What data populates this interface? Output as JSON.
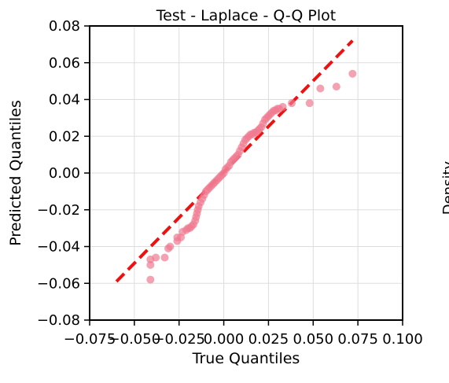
{
  "chart_data": {
    "type": "scatter",
    "title": "Test - Laplace - Q-Q Plot",
    "xlabel": "True Quantiles",
    "ylabel": "Predicted Quantiles",
    "xlim": [
      -0.075,
      0.1
    ],
    "ylim": [
      -0.08,
      0.08
    ],
    "grid": true,
    "x_ticks": [
      -0.075,
      -0.05,
      -0.025,
      0.0,
      0.025,
      0.05,
      0.075,
      0.1
    ],
    "x_tick_labels": [
      "−0.075",
      "−0.050",
      "−0.025",
      "0.000",
      "0.025",
      "0.050",
      "0.075",
      "0.100"
    ],
    "y_ticks": [
      -0.08,
      -0.06,
      -0.04,
      -0.02,
      0.0,
      0.02,
      0.04,
      0.06,
      0.08
    ],
    "y_tick_labels": [
      "−0.08",
      "−0.06",
      "−0.04",
      "−0.02",
      "0.00",
      "0.02",
      "0.04",
      "0.06",
      "0.08"
    ],
    "reference_line": {
      "x": [
        -0.06,
        0.072
      ],
      "y": [
        -0.059,
        0.072
      ],
      "style": "dashed",
      "color": "#ee1111"
    },
    "series": [
      {
        "color": "#f07a90",
        "points": [
          [
            -0.041,
            -0.058
          ],
          [
            -0.041,
            -0.05
          ],
          [
            -0.041,
            -0.047
          ],
          [
            -0.038,
            -0.046
          ],
          [
            -0.033,
            -0.046
          ],
          [
            -0.031,
            -0.041
          ],
          [
            -0.03,
            -0.04
          ],
          [
            -0.026,
            -0.037
          ],
          [
            -0.026,
            -0.035
          ],
          [
            -0.024,
            -0.035
          ],
          [
            -0.023,
            -0.032
          ],
          [
            -0.021,
            -0.031
          ],
          [
            -0.02,
            -0.03
          ],
          [
            -0.019,
            -0.03
          ],
          [
            -0.018,
            -0.029
          ],
          [
            -0.017,
            -0.028
          ],
          [
            -0.016,
            -0.026
          ],
          [
            -0.0155,
            -0.024
          ],
          [
            -0.015,
            -0.022
          ],
          [
            -0.0145,
            -0.02
          ],
          [
            -0.014,
            -0.018
          ],
          [
            -0.013,
            -0.016
          ],
          [
            -0.012,
            -0.014
          ],
          [
            -0.011,
            -0.012
          ],
          [
            -0.01,
            -0.01
          ],
          [
            -0.009,
            -0.009
          ],
          [
            -0.008,
            -0.008
          ],
          [
            -0.007,
            -0.007
          ],
          [
            -0.006,
            -0.006
          ],
          [
            -0.005,
            -0.005
          ],
          [
            -0.004,
            -0.004
          ],
          [
            -0.003,
            -0.003
          ],
          [
            -0.002,
            -0.002
          ],
          [
            -0.001,
            -0.001
          ],
          [
            0.0,
            0.0
          ],
          [
            0.001,
            0.002
          ],
          [
            0.002,
            0.003
          ],
          [
            0.003,
            0.004
          ],
          [
            0.004,
            0.006
          ],
          [
            0.005,
            0.007
          ],
          [
            0.006,
            0.008
          ],
          [
            0.007,
            0.009
          ],
          [
            0.008,
            0.01
          ],
          [
            0.009,
            0.012
          ],
          [
            0.01,
            0.014
          ],
          [
            0.011,
            0.016
          ],
          [
            0.012,
            0.018
          ],
          [
            0.013,
            0.019
          ],
          [
            0.014,
            0.02
          ],
          [
            0.015,
            0.021
          ],
          [
            0.016,
            0.021
          ],
          [
            0.017,
            0.022
          ],
          [
            0.018,
            0.022
          ],
          [
            0.019,
            0.023
          ],
          [
            0.02,
            0.024
          ],
          [
            0.021,
            0.025
          ],
          [
            0.022,
            0.027
          ],
          [
            0.023,
            0.029
          ],
          [
            0.024,
            0.03
          ],
          [
            0.025,
            0.031
          ],
          [
            0.026,
            0.032
          ],
          [
            0.027,
            0.033
          ],
          [
            0.028,
            0.034
          ],
          [
            0.029,
            0.034
          ],
          [
            0.03,
            0.035
          ],
          [
            0.031,
            0.035
          ],
          [
            0.033,
            0.036
          ],
          [
            0.038,
            0.038
          ],
          [
            0.048,
            0.038
          ],
          [
            0.054,
            0.046
          ],
          [
            0.063,
            0.047
          ],
          [
            0.072,
            0.054
          ]
        ]
      }
    ],
    "partial_label": "Density"
  }
}
